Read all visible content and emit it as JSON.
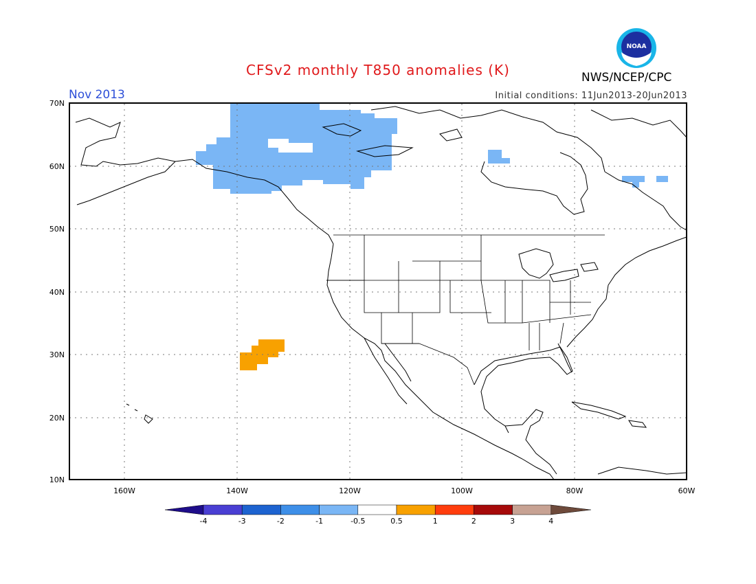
{
  "header": {
    "title": "CFSv2 monthly T850 anomalies (K)",
    "month": "Nov 2013",
    "initial_conditions": "Initial conditions: 11Jun2013-20Jun2013",
    "org": "NWS/NCEP/CPC",
    "logo_text": "NOAA"
  },
  "map": {
    "lat_labels": [
      "70N",
      "60N",
      "50N",
      "40N",
      "30N",
      "20N",
      "10N"
    ],
    "lon_labels": [
      "160W",
      "140W",
      "120W",
      "100W",
      "80W",
      "60W"
    ]
  },
  "colorbar": {
    "labels": [
      "-4",
      "-3",
      "-2",
      "-1",
      "-0.5",
      "0.5",
      "1",
      "2",
      "3",
      "4"
    ],
    "colors": [
      "#1e0d8a",
      "#4a3fd3",
      "#1d63d0",
      "#3e8fe8",
      "#7ab6f5",
      "#ffffff",
      "#f8a100",
      "#ff3d0d",
      "#a60a0a",
      "#c7a293",
      "#6e4a3b"
    ]
  },
  "anomaly_areas": [
    {
      "region": "Alaska / NW Canada",
      "class": "-1 to -0.5",
      "color": "#7ab6f5"
    },
    {
      "region": "Hudson Bay west coast",
      "class": "-1 to -0.5",
      "color": "#7ab6f5"
    },
    {
      "region": "Labrador coast",
      "class": "-1 to -0.5",
      "color": "#7ab6f5"
    },
    {
      "region": "East Pacific (~30N, 137W)",
      "class": "0.5 to 1",
      "color": "#f8a100"
    }
  ]
}
